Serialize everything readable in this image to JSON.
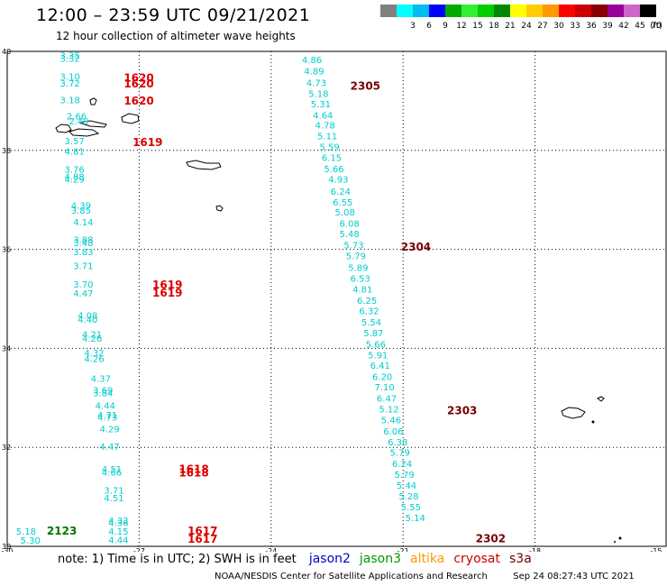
{
  "header": {
    "title": "12:00 – 23:59 UTC 09/21/2021",
    "subtitle": "12 hour collection of altimeter wave heights"
  },
  "color_scale": {
    "unit": "(ft)",
    "bins": [
      {
        "label": "",
        "color": "#808080"
      },
      {
        "label": "3",
        "color": "#00ffff"
      },
      {
        "label": "6",
        "color": "#00bbee"
      },
      {
        "label": "9",
        "color": "#0000ff"
      },
      {
        "label": "12",
        "color": "#00aa00"
      },
      {
        "label": "15",
        "color": "#33ee33"
      },
      {
        "label": "18",
        "color": "#00cc00"
      },
      {
        "label": "21",
        "color": "#008800"
      },
      {
        "label": "24",
        "color": "#ffff00"
      },
      {
        "label": "27",
        "color": "#ffcc00"
      },
      {
        "label": "30",
        "color": "#ff9900"
      },
      {
        "label": "33",
        "color": "#ff0000"
      },
      {
        "label": "36",
        "color": "#cc0000"
      },
      {
        "label": "39",
        "color": "#880000"
      },
      {
        "label": "42",
        "color": "#990099"
      },
      {
        "label": "45",
        "color": "#cc66cc"
      },
      {
        "label": "70",
        "color": "#000000"
      }
    ]
  },
  "map": {
    "lon_ticks": [
      "-30",
      "-27",
      "-24",
      "-21",
      "-18",
      "-15"
    ],
    "lat_ticks": [
      "40",
      "38",
      "36",
      "34",
      "32",
      "30"
    ],
    "colors": {
      "wave": "#00cccc",
      "time_red": "#dd0000",
      "time_dark": "#770000",
      "time_green": "#007700"
    },
    "waves": [
      {
        "t": "3.35",
        "lon": -28.8,
        "lat": 39.93
      },
      {
        "t": "3.32",
        "lon": -28.8,
        "lat": 39.86
      },
      {
        "t": "3.10",
        "lon": -28.8,
        "lat": 39.5
      },
      {
        "t": "3.72",
        "lon": -28.8,
        "lat": 39.36
      },
      {
        "t": "3.18",
        "lon": -28.8,
        "lat": 39.03
      },
      {
        "t": "2.66",
        "lon": -28.65,
        "lat": 38.7
      },
      {
        "t": "2.49",
        "lon": -28.6,
        "lat": 38.6
      },
      {
        "t": "3.57",
        "lon": -28.7,
        "lat": 38.2
      },
      {
        "t": "4.81",
        "lon": -28.7,
        "lat": 37.99
      },
      {
        "t": "3.76",
        "lon": -28.7,
        "lat": 37.62
      },
      {
        "t": "4.88",
        "lon": -28.7,
        "lat": 37.48
      },
      {
        "t": "4.29",
        "lon": -28.7,
        "lat": 37.42
      },
      {
        "t": "4.39",
        "lon": -28.55,
        "lat": 36.89
      },
      {
        "t": "3.85",
        "lon": -28.55,
        "lat": 36.79
      },
      {
        "t": "4.14",
        "lon": -28.5,
        "lat": 36.56
      },
      {
        "t": "3.88",
        "lon": -28.5,
        "lat": 36.2
      },
      {
        "t": "3.48",
        "lon": -28.5,
        "lat": 36.14
      },
      {
        "t": "3.83",
        "lon": -28.5,
        "lat": 35.96
      },
      {
        "t": "3.71",
        "lon": -28.5,
        "lat": 35.67
      },
      {
        "t": "3.70",
        "lon": -28.5,
        "lat": 35.3
      },
      {
        "t": "4.47",
        "lon": -28.5,
        "lat": 35.12
      },
      {
        "t": "4.08",
        "lon": -28.4,
        "lat": 34.67
      },
      {
        "t": "4.40",
        "lon": -28.4,
        "lat": 34.59
      },
      {
        "t": "4.21",
        "lon": -28.3,
        "lat": 34.29
      },
      {
        "t": "4.26",
        "lon": -28.3,
        "lat": 34.21
      },
      {
        "t": "4.32",
        "lon": -28.25,
        "lat": 33.92
      },
      {
        "t": "4.26",
        "lon": -28.25,
        "lat": 33.8
      },
      {
        "t": "4.37",
        "lon": -28.1,
        "lat": 33.4
      },
      {
        "t": "3.69",
        "lon": -28.05,
        "lat": 33.16
      },
      {
        "t": "3.84",
        "lon": -28.05,
        "lat": 33.11
      },
      {
        "t": "4.44",
        "lon": -28.0,
        "lat": 32.85
      },
      {
        "t": "4.71",
        "lon": -27.95,
        "lat": 32.66
      },
      {
        "t": "4.73",
        "lon": -27.95,
        "lat": 32.61
      },
      {
        "t": "4.29",
        "lon": -27.9,
        "lat": 32.38
      },
      {
        "t": "4.47",
        "lon": -27.9,
        "lat": 32.02
      },
      {
        "t": "4.51",
        "lon": -27.85,
        "lat": 31.57
      },
      {
        "t": "4.66",
        "lon": -27.85,
        "lat": 31.5
      },
      {
        "t": "3.71",
        "lon": -27.8,
        "lat": 31.14
      },
      {
        "t": "4.51",
        "lon": -27.8,
        "lat": 30.98
      },
      {
        "t": "4.33",
        "lon": -27.7,
        "lat": 30.53
      },
      {
        "t": "4.36",
        "lon": -27.7,
        "lat": 30.48
      },
      {
        "t": "4.15",
        "lon": -27.7,
        "lat": 30.31
      },
      {
        "t": "4.44",
        "lon": -27.7,
        "lat": 30.14
      },
      {
        "t": "5.18",
        "lon": -29.8,
        "lat": 30.31
      },
      {
        "t": "5.30",
        "lon": -29.7,
        "lat": 30.13
      },
      {
        "t": "4.86",
        "lon": -23.3,
        "lat": 39.84
      },
      {
        "t": "4.89",
        "lon": -23.25,
        "lat": 39.61
      },
      {
        "t": "4.73",
        "lon": -23.2,
        "lat": 39.37
      },
      {
        "t": "5.18",
        "lon": -23.15,
        "lat": 39.15
      },
      {
        "t": "5.31",
        "lon": -23.1,
        "lat": 38.94
      },
      {
        "t": "4.64",
        "lon": -23.05,
        "lat": 38.72
      },
      {
        "t": "4.78",
        "lon": -23.0,
        "lat": 38.52
      },
      {
        "t": "5.11",
        "lon": -22.95,
        "lat": 38.3
      },
      {
        "t": "5.59",
        "lon": -22.9,
        "lat": 38.08
      },
      {
        "t": "6.15",
        "lon": -22.85,
        "lat": 37.86
      },
      {
        "t": "5.66",
        "lon": -22.8,
        "lat": 37.63
      },
      {
        "t": "4.93",
        "lon": -22.7,
        "lat": 37.42
      },
      {
        "t": "6.24",
        "lon": -22.65,
        "lat": 37.18
      },
      {
        "t": "6.55",
        "lon": -22.6,
        "lat": 36.96
      },
      {
        "t": "5.08",
        "lon": -22.55,
        "lat": 36.76
      },
      {
        "t": "6.08",
        "lon": -22.45,
        "lat": 36.53
      },
      {
        "t": "5.48",
        "lon": -22.45,
        "lat": 36.32
      },
      {
        "t": "5.73",
        "lon": -22.35,
        "lat": 36.09
      },
      {
        "t": "5.79",
        "lon": -22.3,
        "lat": 35.87
      },
      {
        "t": "5.89",
        "lon": -22.25,
        "lat": 35.64
      },
      {
        "t": "6.53",
        "lon": -22.2,
        "lat": 35.42
      },
      {
        "t": "4.81",
        "lon": -22.15,
        "lat": 35.2
      },
      {
        "t": "6.25",
        "lon": -22.05,
        "lat": 34.97
      },
      {
        "t": "6.32",
        "lon": -22.0,
        "lat": 34.76
      },
      {
        "t": "5.54",
        "lon": -21.95,
        "lat": 34.54
      },
      {
        "t": "5.87",
        "lon": -21.9,
        "lat": 34.32
      },
      {
        "t": "5.66",
        "lon": -21.85,
        "lat": 34.09
      },
      {
        "t": "5.91",
        "lon": -21.8,
        "lat": 33.87
      },
      {
        "t": "6.41",
        "lon": -21.75,
        "lat": 33.66
      },
      {
        "t": "6.20",
        "lon": -21.7,
        "lat": 33.43
      },
      {
        "t": "7.10",
        "lon": -21.65,
        "lat": 33.22
      },
      {
        "t": "6.47",
        "lon": -21.6,
        "lat": 33.0
      },
      {
        "t": "5.12",
        "lon": -21.55,
        "lat": 32.78
      },
      {
        "t": "5.46",
        "lon": -21.5,
        "lat": 32.56
      },
      {
        "t": "6.06",
        "lon": -21.45,
        "lat": 32.33
      },
      {
        "t": "6.38",
        "lon": -21.35,
        "lat": 32.11
      },
      {
        "t": "5.79",
        "lon": -21.3,
        "lat": 31.9
      },
      {
        "t": "6.24",
        "lon": -21.25,
        "lat": 31.68
      },
      {
        "t": "5.79",
        "lon": -21.2,
        "lat": 31.46
      },
      {
        "t": "5.44",
        "lon": -21.15,
        "lat": 31.24
      },
      {
        "t": "5.28",
        "lon": -21.1,
        "lat": 31.02
      },
      {
        "t": "5.55",
        "lon": -21.05,
        "lat": 30.8
      },
      {
        "t": "5.14",
        "lon": -20.95,
        "lat": 30.58
      }
    ],
    "times": [
      {
        "t": "1620",
        "lon": -27.35,
        "lat": 39.48,
        "c": "red"
      },
      {
        "t": "1620",
        "lon": -27.35,
        "lat": 39.36,
        "c": "red"
      },
      {
        "t": "1620",
        "lon": -27.35,
        "lat": 39.02,
        "c": "red"
      },
      {
        "t": "1619",
        "lon": -27.15,
        "lat": 38.18,
        "c": "red"
      },
      {
        "t": "1619",
        "lon": -26.7,
        "lat": 35.3,
        "c": "red"
      },
      {
        "t": "1619",
        "lon": -26.7,
        "lat": 35.14,
        "c": "red"
      },
      {
        "t": "1618",
        "lon": -26.1,
        "lat": 31.58,
        "c": "red"
      },
      {
        "t": "1618",
        "lon": -26.1,
        "lat": 31.5,
        "c": "red"
      },
      {
        "t": "1617",
        "lon": -25.9,
        "lat": 30.33,
        "c": "red"
      },
      {
        "t": "1617",
        "lon": -25.9,
        "lat": 30.16,
        "c": "red"
      },
      {
        "t": "2305",
        "lon": -22.2,
        "lat": 39.32,
        "c": "dark"
      },
      {
        "t": "2304",
        "lon": -21.05,
        "lat": 36.07,
        "c": "dark"
      },
      {
        "t": "2303",
        "lon": -20.0,
        "lat": 32.76,
        "c": "dark"
      },
      {
        "t": "2302",
        "lon": -19.35,
        "lat": 30.17,
        "c": "dark"
      },
      {
        "t": "2123",
        "lon": -29.1,
        "lat": 30.33,
        "c": "green"
      }
    ]
  },
  "note": {
    "text": "note:  1) Time is in UTC;  2) SWH is in feet",
    "satellites": [
      {
        "name": "jason2",
        "color": "#0000cc"
      },
      {
        "name": "jason3",
        "color": "#009900"
      },
      {
        "name": "altika",
        "color": "#ff9900"
      },
      {
        "name": "cryosat",
        "color": "#cc0000"
      },
      {
        "name": "s3a",
        "color": "#660000"
      }
    ]
  },
  "footer": {
    "org": "NOAA/NESDIS Center for Satellite Applications and Research",
    "timestamp": "Sep 24 08:27:43 UTC 2021"
  }
}
